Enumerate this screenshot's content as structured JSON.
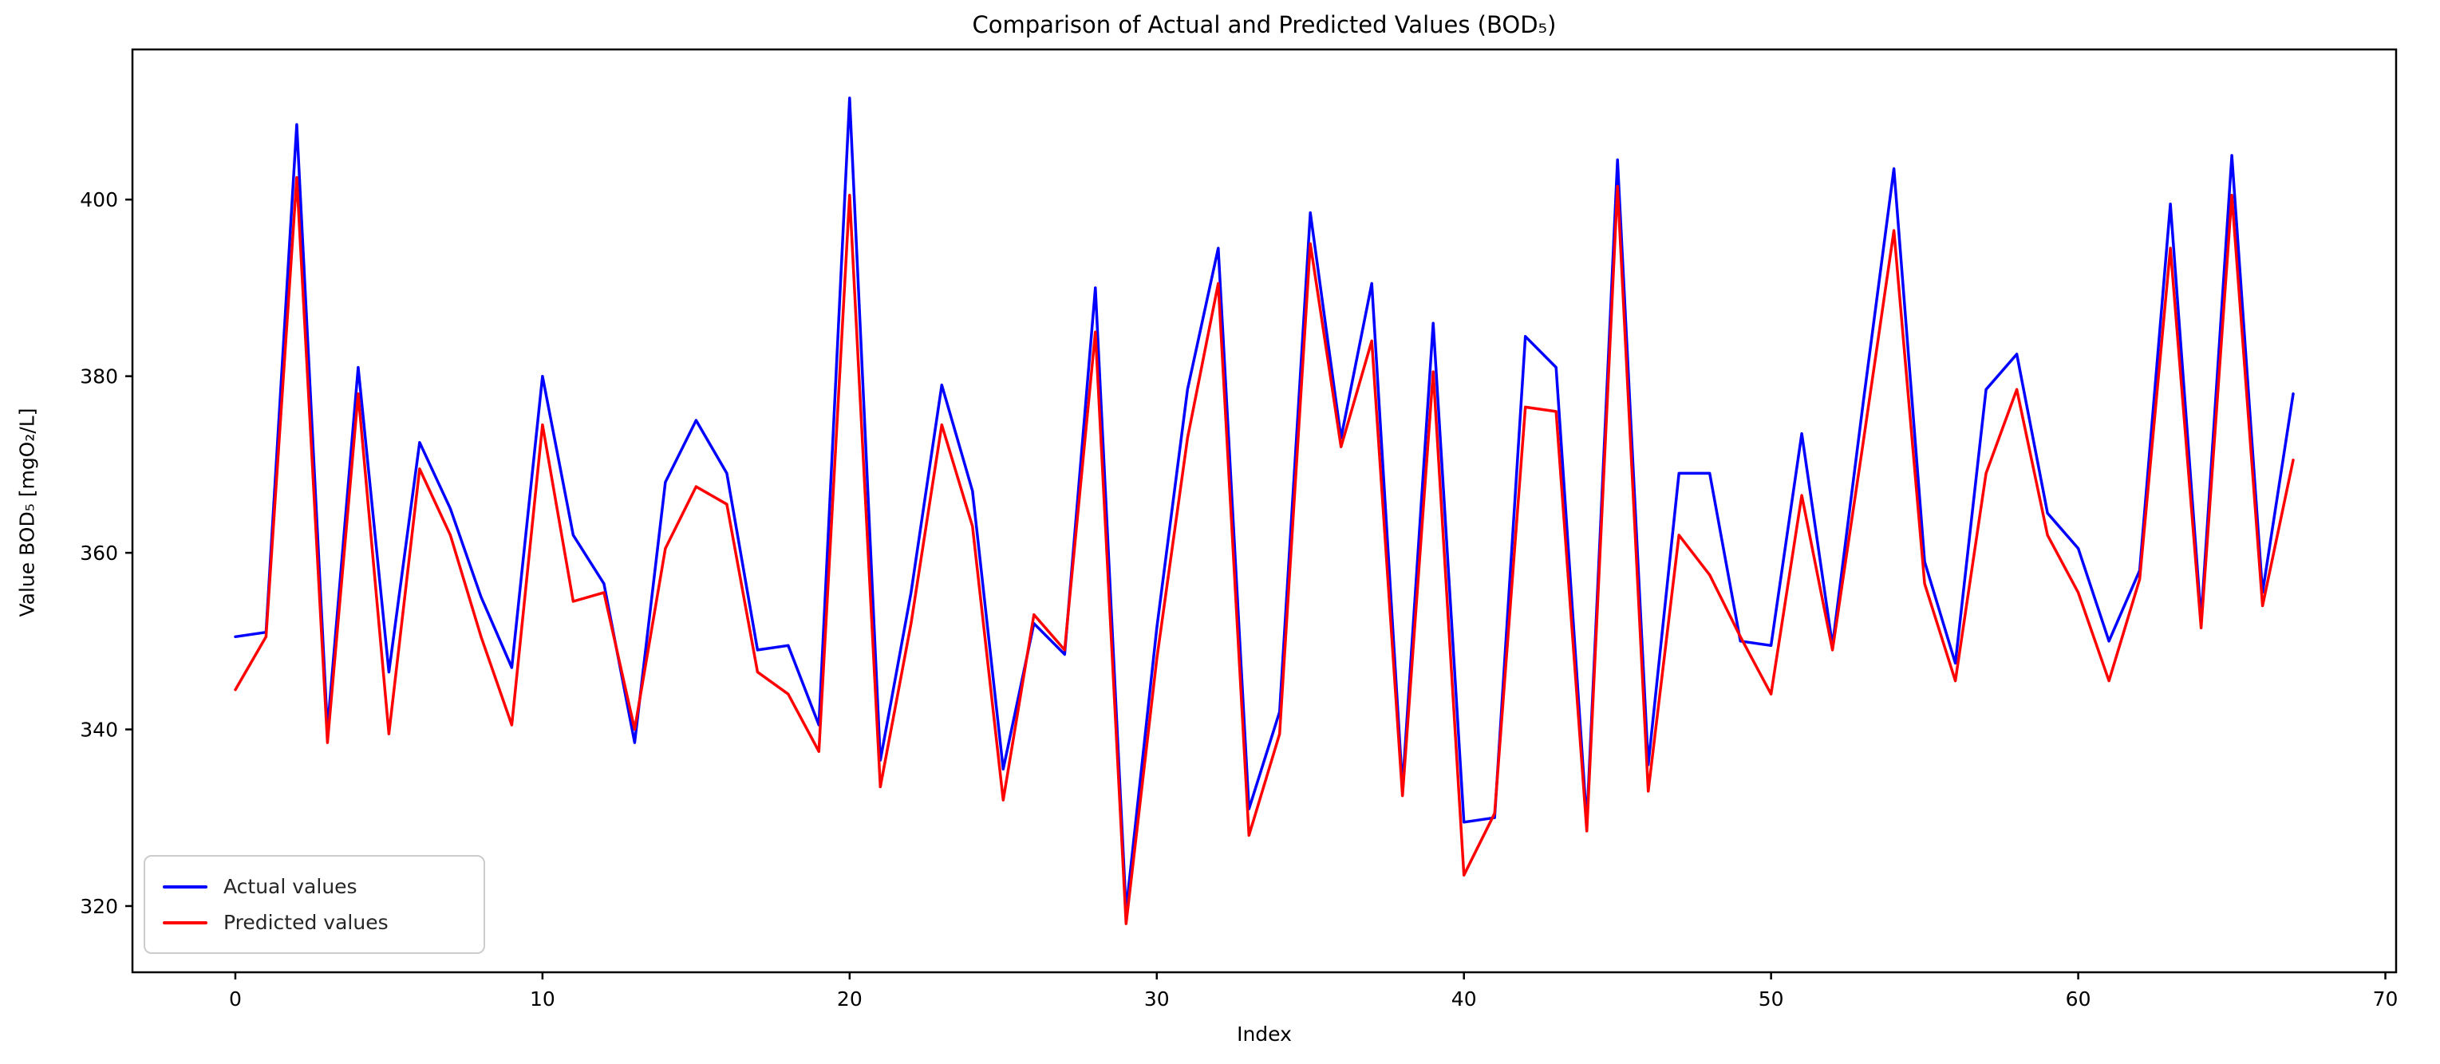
{
  "title": "Comparison of Actual and Predicted Values (BOD₅)",
  "chart_data": {
    "type": "line",
    "title": "Comparison of Actual and Predicted Values (BOD₅)",
    "xlabel": "Index",
    "ylabel": "Value BOD₅ [mgO₂/L]",
    "xlim": [
      -3.35,
      70.35
    ],
    "ylim": [
      312.5,
      417.0
    ],
    "xticks": [
      0,
      10,
      20,
      30,
      40,
      50,
      60,
      70
    ],
    "yticks": [
      320,
      340,
      360,
      380,
      400
    ],
    "grid": false,
    "legend_position": "lower left",
    "axis_color": "#000000",
    "background_color": "#ffffff",
    "x": [
      0,
      1,
      2,
      3,
      4,
      5,
      6,
      7,
      8,
      9,
      10,
      11,
      12,
      13,
      14,
      15,
      16,
      17,
      18,
      19,
      20,
      21,
      22,
      23,
      24,
      25,
      26,
      27,
      28,
      29,
      30,
      31,
      32,
      33,
      34,
      35,
      36,
      37,
      38,
      39,
      40,
      41,
      42,
      43,
      44,
      45,
      46,
      47,
      48,
      49,
      50,
      51,
      52,
      53,
      54,
      55,
      56,
      57,
      58,
      59,
      60,
      61,
      62,
      63,
      64,
      65,
      66,
      67
    ],
    "series": [
      {
        "name": "Actual values",
        "color": "#0000ff",
        "values": [
          350.5,
          351,
          408.5,
          340,
          381,
          346.5,
          372.5,
          365,
          355,
          347,
          380,
          362,
          356.5,
          338.5,
          368,
          375,
          369,
          349,
          349.5,
          340.5,
          411.5,
          336.5,
          355.5,
          379,
          367,
          335.5,
          352,
          348.5,
          390,
          319.5,
          351.5,
          378.5,
          394.5,
          331,
          342,
          398.5,
          373,
          390.5,
          333.5,
          386,
          329.5,
          330,
          384.5,
          381,
          329.5,
          404.5,
          336,
          369,
          369,
          350,
          349.5,
          373.5,
          349.5,
          377,
          403.5,
          359,
          347.5,
          378.5,
          382.5,
          364.5,
          360.5,
          350,
          358,
          399.5,
          352.5,
          405,
          355.5,
          378
        ]
      },
      {
        "name": "Predicted values",
        "color": "#ff0000",
        "values": [
          344.5,
          350.5,
          402.5,
          338.5,
          378,
          339.5,
          369.5,
          362,
          350.5,
          340.5,
          374.5,
          354.5,
          355.5,
          340,
          360.5,
          367.5,
          365.5,
          346.5,
          344,
          337.5,
          400.5,
          333.5,
          352,
          374.5,
          363,
          332,
          353,
          349,
          385,
          318,
          348,
          373,
          390.5,
          328,
          339.5,
          395,
          372,
          384,
          332.5,
          380.5,
          323.5,
          330.5,
          376.5,
          376,
          328.5,
          401.5,
          333,
          362,
          357.5,
          350.5,
          344,
          366.5,
          349,
          372.5,
          396.5,
          356.5,
          345.5,
          369,
          378.5,
          362,
          355.5,
          345.5,
          357,
          394.5,
          351.5,
          400.5,
          354,
          370.5
        ]
      }
    ]
  }
}
